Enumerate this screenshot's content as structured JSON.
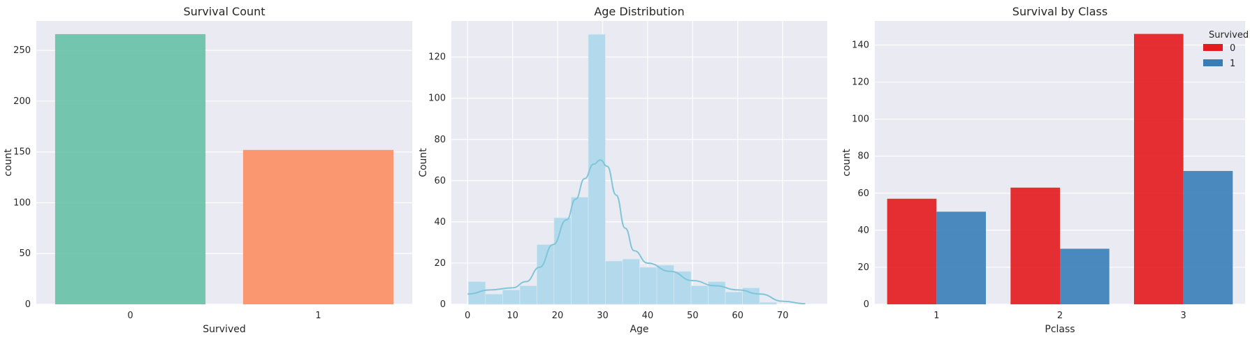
{
  "colors": {
    "background": "#eaeaf2",
    "grid": "#ffffff",
    "text": "#262626",
    "set2_green": "#66c2a5",
    "set2_orange": "#fc8d62",
    "hist": "#b3d9ec",
    "kde": "#7ec6d8",
    "set1_red": "#e41a1c",
    "set1_blue": "#377eb8"
  },
  "chart_data": [
    {
      "type": "bar",
      "title": "Survival Count",
      "xlabel": "Survived",
      "ylabel": "count",
      "categories": [
        "0",
        "1"
      ],
      "values": [
        266,
        152
      ],
      "ylim": [
        0,
        279
      ],
      "yticks": [
        0,
        50,
        100,
        150,
        200,
        250
      ],
      "grid": true,
      "palette": [
        "#66c2a5",
        "#fc8d62"
      ]
    },
    {
      "type": "histogram",
      "title": "Age Distribution",
      "xlabel": "Age",
      "ylabel": "Count",
      "bin_edges": [
        0.17,
        3.98,
        7.78,
        11.59,
        15.39,
        19.2,
        23.0,
        26.81,
        30.61,
        34.42,
        38.22,
        42.03,
        45.83,
        49.64,
        53.44,
        57.25,
        61.05,
        64.86,
        68.66,
        72.47,
        76.27
      ],
      "counts": [
        11,
        5,
        7,
        9,
        29,
        42,
        52,
        131,
        21,
        22,
        18,
        19,
        16,
        9,
        11,
        6,
        8,
        1,
        0,
        0
      ],
      "kde": {
        "x": [
          0,
          5,
          10,
          13,
          16,
          19,
          22,
          24,
          26,
          28,
          29.5,
          31,
          33,
          35,
          37,
          40,
          45,
          50,
          55,
          60,
          65,
          70,
          75
        ],
        "y": [
          5,
          7,
          8,
          11,
          18,
          29,
          41,
          51,
          61,
          68,
          70,
          67,
          53,
          37,
          26,
          20,
          16,
          11.5,
          9,
          7,
          5,
          1.5,
          0.3
        ]
      },
      "xlim": [
        -3.6,
        79.9
      ],
      "ylim": [
        0,
        137.5
      ],
      "xticks": [
        0,
        10,
        20,
        30,
        40,
        50,
        60,
        70
      ],
      "yticks": [
        0,
        20,
        40,
        60,
        80,
        100,
        120
      ],
      "grid": true
    },
    {
      "type": "bar",
      "title": "Survival by Class",
      "xlabel": "Pclass",
      "ylabel": "count",
      "categories": [
        "1",
        "2",
        "3"
      ],
      "series": [
        {
          "name": "0",
          "values": [
            57,
            63,
            146
          ]
        },
        {
          "name": "1",
          "values": [
            50,
            30,
            72
          ]
        }
      ],
      "legend_title": "Survived",
      "legend_position": "top-right",
      "ylim": [
        0,
        153
      ],
      "yticks": [
        0,
        20,
        40,
        60,
        80,
        100,
        120,
        140
      ],
      "grid": true,
      "palette": [
        "#e41a1c",
        "#377eb8"
      ]
    }
  ]
}
